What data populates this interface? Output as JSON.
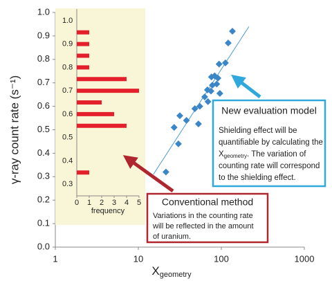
{
  "chart_data": [
    {
      "type": "scatter",
      "y_label": "γ-ray count rate (s⁻¹)",
      "x_label": {
        "main": "X",
        "sub": "geometry"
      },
      "x_log": true,
      "xlim": [
        1,
        1000
      ],
      "xticks": [
        1,
        10,
        100,
        1000
      ],
      "ylim": [
        0,
        1
      ],
      "yticks": [
        {
          "value": 0,
          "label": "0.0"
        },
        0.1,
        0.2,
        0.3,
        0.4,
        0.5,
        0.6,
        0.7,
        0.8,
        0.9,
        {
          "value": 1,
          "label": "1.0"
        }
      ],
      "color": "#3b86c6",
      "x": [
        21.5,
        30.4,
        27,
        31.6,
        38,
        48,
        53,
        55,
        63,
        68,
        69,
        75,
        83,
        78,
        91,
        96,
        88,
        94,
        112,
        121,
        136,
        76
      ],
      "values": [
        0.32,
        0.44,
        0.51,
        0.56,
        0.54,
        0.59,
        0.525,
        0.6,
        0.64,
        0.67,
        0.62,
        0.665,
        0.73,
        0.69,
        0.72,
        0.655,
        0.695,
        0.78,
        0.785,
        0.87,
        0.92,
        0.725
      ],
      "trend": {
        "x": [
          15.2,
          215
        ],
        "values": [
          0.31,
          0.94
        ],
        "color": "#4a9ad6"
      }
    },
    {
      "type": "barh",
      "x_label": "frequency",
      "xlim": [
        0,
        5
      ],
      "xticks": [
        0,
        1,
        2,
        3,
        4,
        5
      ],
      "ylim": [
        0.25,
        1.05
      ],
      "yticks": [
        0.3,
        0.4,
        0.5,
        0.6,
        0.7,
        0.8,
        0.9,
        {
          "value": 1,
          "label": "1.0"
        }
      ],
      "color": "#e3202b",
      "background": "#f8f6d6",
      "y": [
        0.95,
        0.9,
        0.85,
        0.8,
        0.75,
        0.7,
        0.65,
        0.6,
        0.55,
        0.35
      ],
      "values": [
        1,
        1,
        1,
        1,
        4,
        5,
        2,
        3,
        4,
        1
      ]
    }
  ],
  "annotations": {
    "new_model": {
      "title": "New evaluation model",
      "lines": [
        "Shielding effect will be",
        "quantifiable by calculating the",
        {
          "main": "X",
          "sub": "geometry",
          "tail": ". The variation of"
        },
        "counting rate will correspond",
        "to the shielding effect."
      ]
    },
    "conventional": {
      "title": "Conventional method",
      "lines": [
        "Variations in the counting rate",
        "will be reflected in the amount",
        "of uranium."
      ]
    }
  }
}
